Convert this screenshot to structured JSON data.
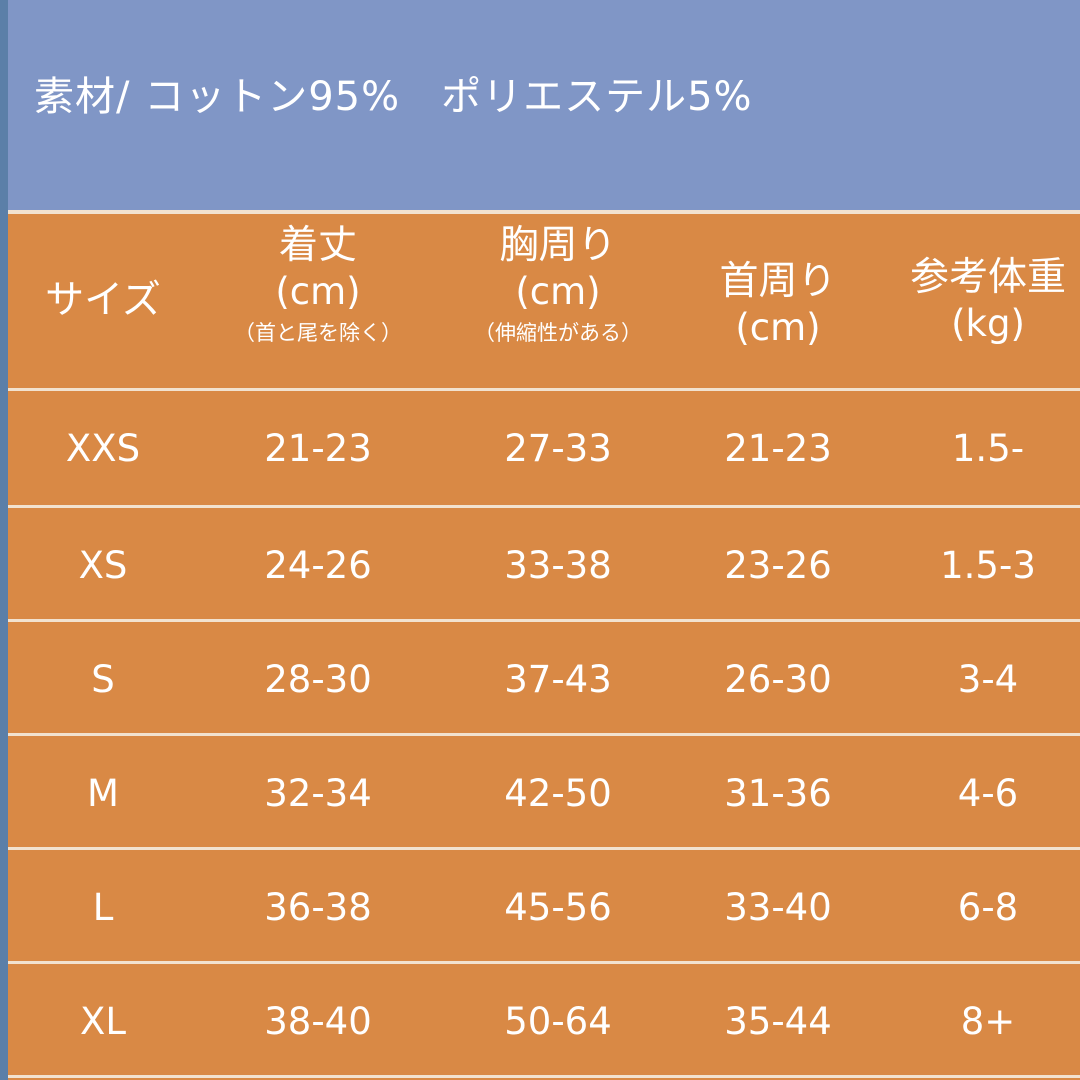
{
  "material": "素材/ コットン95%　ポリエステル5%",
  "headers": [
    {
      "main": "サイズ",
      "unit": "",
      "note": ""
    },
    {
      "main": "着丈",
      "unit": "(cm)",
      "note": "（首と尾を除く）"
    },
    {
      "main": "胸周り",
      "unit": "(cm)",
      "note": "（伸縮性がある）"
    },
    {
      "main": "首周り",
      "unit": "(cm)",
      "note": ""
    },
    {
      "main": "参考体重",
      "unit": "(kg)",
      "note": ""
    }
  ],
  "rows": [
    {
      "size": "XXS",
      "length": "21-23",
      "chest": "27-33",
      "neck": "21-23",
      "weight": "1.5-"
    },
    {
      "size": "XS",
      "length": "24-26",
      "chest": "33-38",
      "neck": "23-26",
      "weight": "1.5-3"
    },
    {
      "size": "S",
      "length": "28-30",
      "chest": "37-43",
      "neck": "26-30",
      "weight": "3-4"
    },
    {
      "size": "M",
      "length": "32-34",
      "chest": "42-50",
      "neck": "31-36",
      "weight": "4-6"
    },
    {
      "size": "L",
      "length": "36-38",
      "chest": "45-56",
      "neck": "33-40",
      "weight": "6-8"
    },
    {
      "size": "XL",
      "length": "38-40",
      "chest": "50-64",
      "neck": "35-44",
      "weight": "8+"
    }
  ],
  "colors": {
    "banner": "#8096c6",
    "table": "#d98945",
    "divider": "#f2e2cf",
    "text": "#ffffff"
  }
}
